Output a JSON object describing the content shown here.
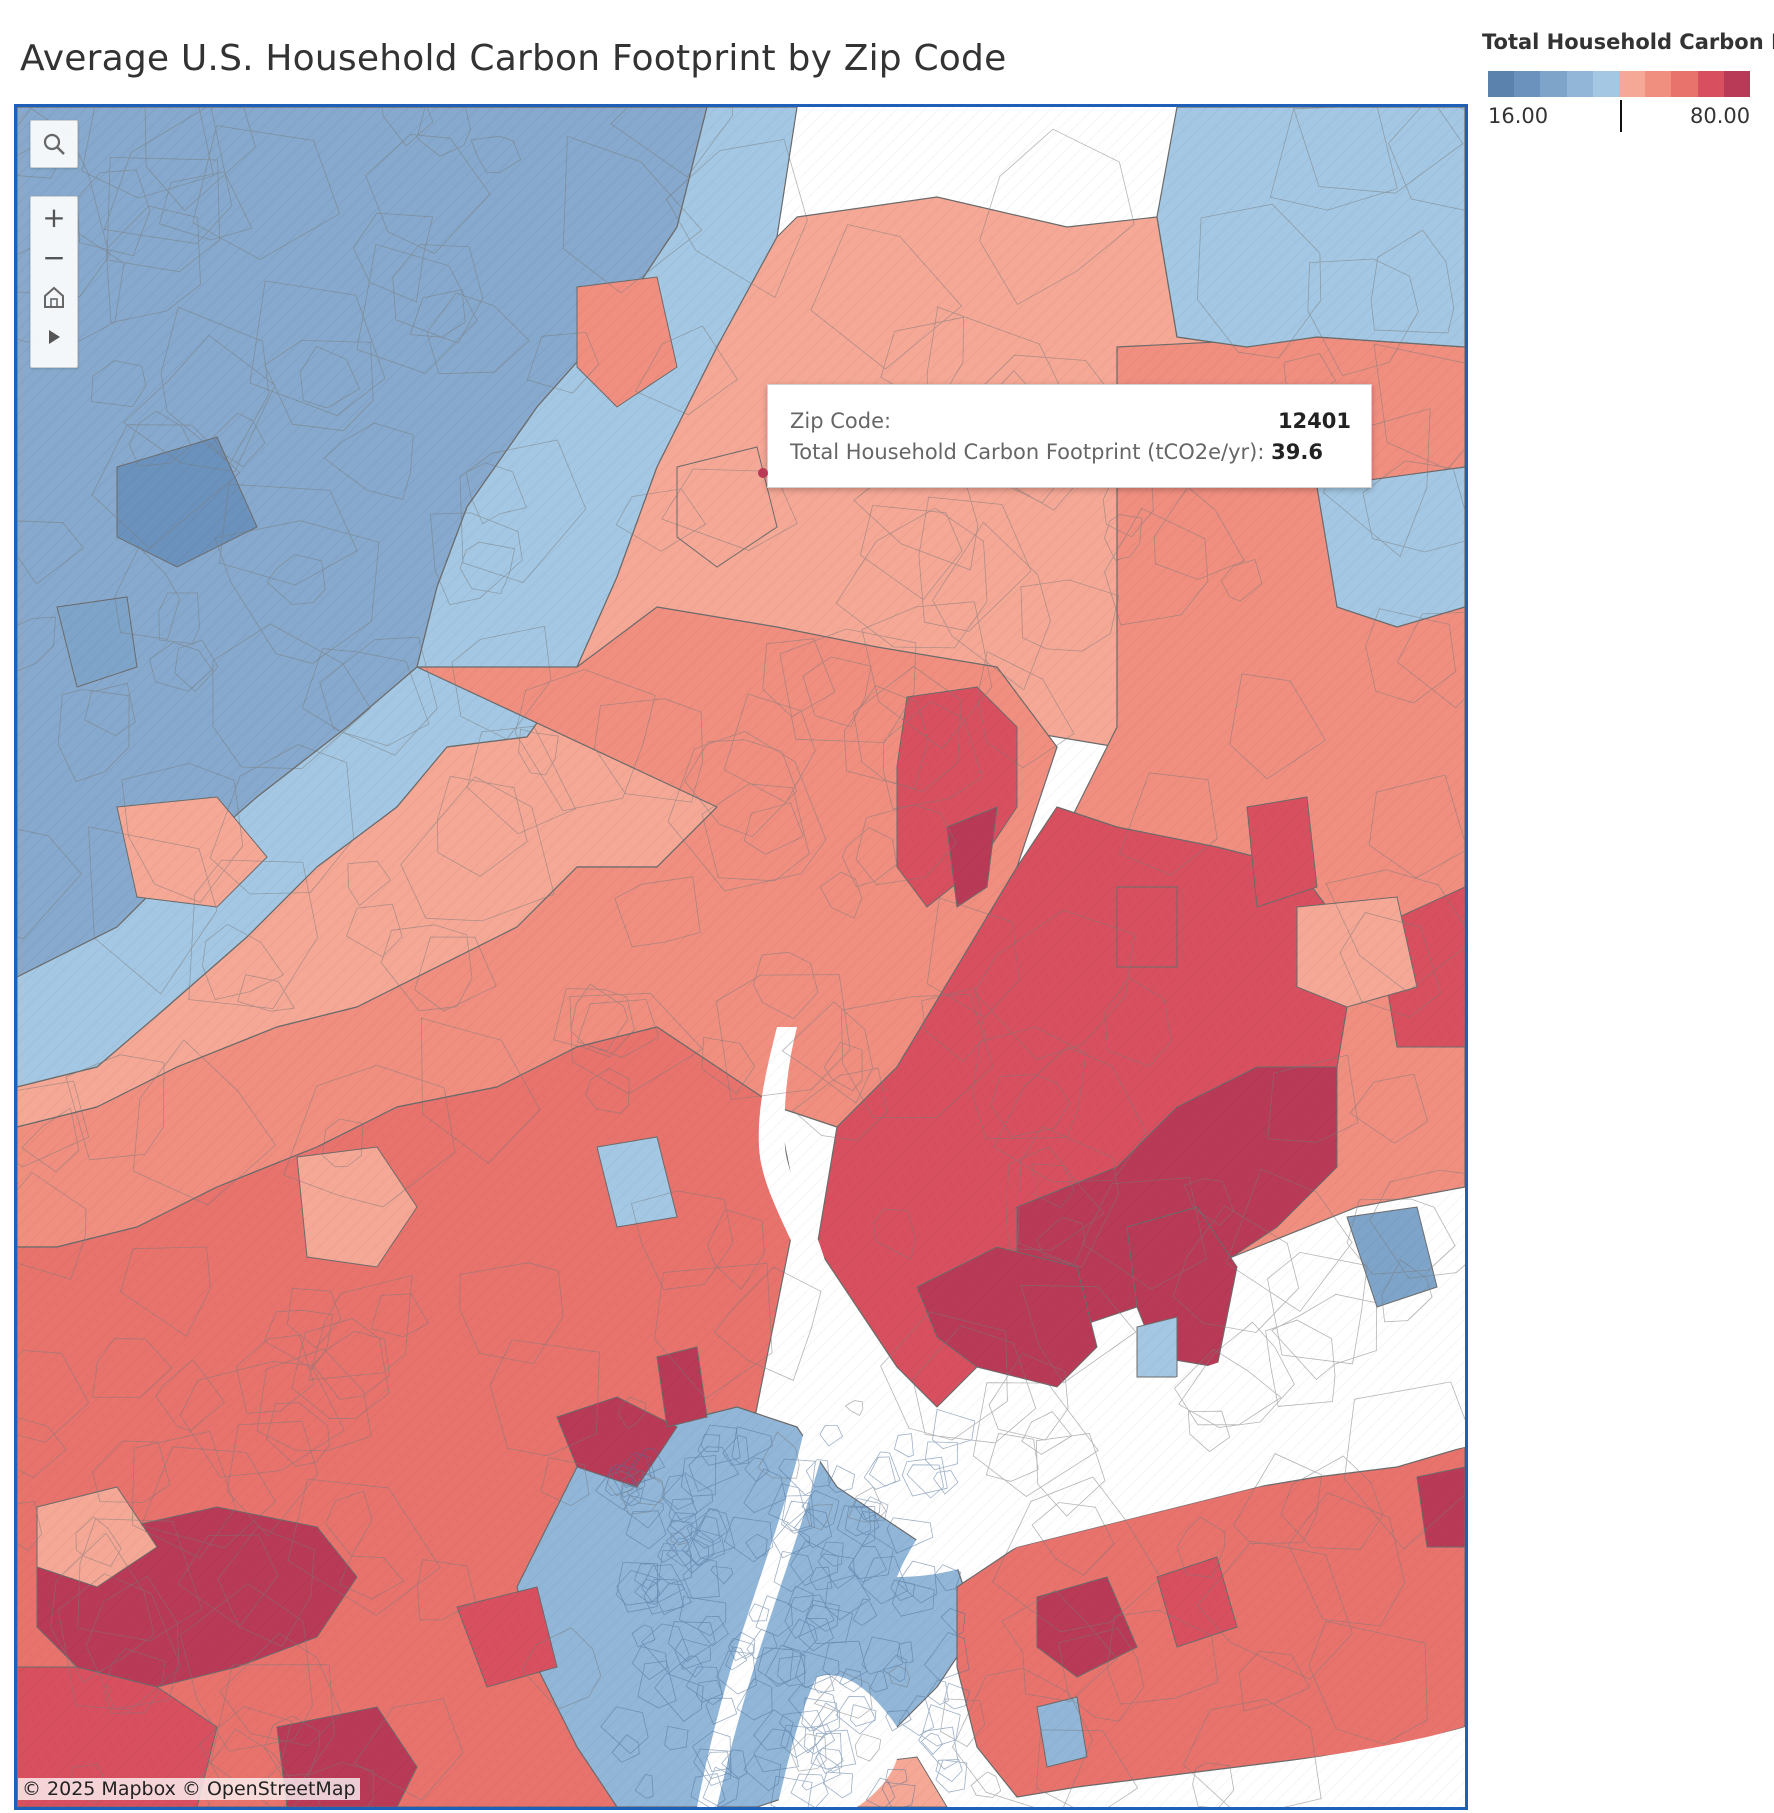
{
  "title": "Average U.S. Household Carbon Footprint by Zip Code",
  "legend": {
    "title": "Total Household Carbon F...",
    "min_label": "16.00",
    "max_label": "80.00",
    "colors": [
      "#5a82ad",
      "#6b92bc",
      "#7ea4c9",
      "#91b6d8",
      "#a4c8e4",
      "#f6a896",
      "#f08f80",
      "#e8736d",
      "#d8505f",
      "#b83a57"
    ]
  },
  "toolbar": {
    "search_icon": "search-icon",
    "zoom_in": "+",
    "zoom_out": "−",
    "home_icon": "home-icon",
    "play_icon": "play-icon"
  },
  "tooltip": {
    "zip_label": "Zip Code:",
    "zip_value": "12401",
    "metric_label": "Total Household Carbon Footprint (tCO2e/yr):",
    "metric_value": "39.6"
  },
  "attribution": "© 2025 Mapbox  © OpenStreetMap",
  "colors": {
    "water": "#ffffff",
    "frame": "#1f5fb8",
    "border": "#6b6b6b"
  }
}
